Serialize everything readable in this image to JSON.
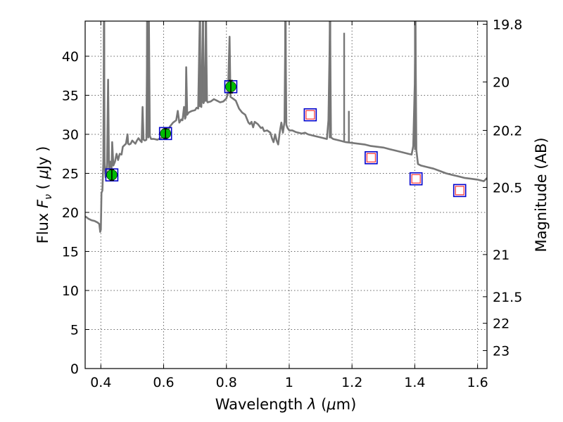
{
  "chart_data": {
    "type": "scatter",
    "xlabel_prefix": "Wavelength  ",
    "xlabel_symbol": "λ",
    "xlabel_unit_open": " (",
    "xlabel_unit_mu": "μ",
    "xlabel_unit_rest": "m)",
    "ylabel_prefix": "Flux  ",
    "ylabel_symbol": "F",
    "ylabel_sub": "ν",
    "ylabel_unit_open": "  ( ",
    "ylabel_unit_mu": "μ",
    "ylabel_unit_rest": "Jy )",
    "y2label": "Magnitude (AB)",
    "xlim": [
      0.35,
      1.63
    ],
    "ylim": [
      0,
      44.5
    ],
    "grid": true,
    "x_ticks": [
      {
        "value": 0.4,
        "label": "0.4"
      },
      {
        "value": 0.6,
        "label": "0.6"
      },
      {
        "value": 0.8,
        "label": "0.8"
      },
      {
        "value": 1.0,
        "label": "1"
      },
      {
        "value": 1.2,
        "label": "1.2"
      },
      {
        "value": 1.4,
        "label": "1.4"
      },
      {
        "value": 1.6,
        "label": "1.6"
      }
    ],
    "y_ticks": [
      {
        "value": 0,
        "label": "0"
      },
      {
        "value": 5,
        "label": "5"
      },
      {
        "value": 10,
        "label": "10"
      },
      {
        "value": 15,
        "label": "15"
      },
      {
        "value": 20,
        "label": "20"
      },
      {
        "value": 25,
        "label": "25"
      },
      {
        "value": 30,
        "label": "30"
      },
      {
        "value": 35,
        "label": "35"
      },
      {
        "value": 40,
        "label": "40"
      }
    ],
    "y2_ticks": [
      {
        "flux": 44.1,
        "label": "19.8"
      },
      {
        "flux": 36.7,
        "label": "20"
      },
      {
        "flux": 30.5,
        "label": "20.2"
      },
      {
        "flux": 23.2,
        "label": "20.5"
      },
      {
        "flux": 14.6,
        "label": "21"
      },
      {
        "flux": 9.2,
        "label": "21.5"
      },
      {
        "flux": 5.8,
        "label": "22"
      },
      {
        "flux": 2.3,
        "label": "23"
      }
    ],
    "sed_color": "#777777",
    "sed_curve": [
      [
        0.35,
        19.5
      ],
      [
        0.36,
        19.2
      ],
      [
        0.37,
        19.0
      ],
      [
        0.38,
        18.9
      ],
      [
        0.39,
        18.7
      ],
      [
        0.395,
        18.5
      ],
      [
        0.398,
        17.5
      ],
      [
        0.4,
        17.8
      ],
      [
        0.402,
        22.5
      ],
      [
        0.405,
        22.8
      ],
      [
        0.408,
        26.5
      ],
      [
        0.41,
        44.5
      ],
      [
        0.412,
        26
      ],
      [
        0.415,
        24.5
      ],
      [
        0.418,
        25
      ],
      [
        0.42,
        26.5
      ],
      [
        0.423,
        37
      ],
      [
        0.426,
        25.5
      ],
      [
        0.43,
        26.5
      ],
      [
        0.434,
        25.5
      ],
      [
        0.436,
        29
      ],
      [
        0.44,
        26
      ],
      [
        0.445,
        26.5
      ],
      [
        0.45,
        27.5
      ],
      [
        0.455,
        26.7
      ],
      [
        0.46,
        27.5
      ],
      [
        0.466,
        27.4
      ],
      [
        0.47,
        28.4
      ],
      [
        0.48,
        28.8
      ],
      [
        0.485,
        30.0
      ],
      [
        0.487,
        28.8
      ],
      [
        0.49,
        28.7
      ],
      [
        0.495,
        28.8
      ],
      [
        0.5,
        29.2
      ],
      [
        0.505,
        29.0
      ],
      [
        0.51,
        28.8
      ],
      [
        0.515,
        29.2
      ],
      [
        0.52,
        29.5
      ],
      [
        0.525,
        29.2
      ],
      [
        0.53,
        29.0
      ],
      [
        0.533,
        33.5
      ],
      [
        0.536,
        29.3
      ],
      [
        0.54,
        29.2
      ],
      [
        0.545,
        29.3
      ],
      [
        0.548,
        44.5
      ],
      [
        0.551,
        29.6
      ],
      [
        0.553,
        44.5
      ],
      [
        0.556,
        29.8
      ],
      [
        0.56,
        29.4
      ],
      [
        0.57,
        29.4
      ],
      [
        0.58,
        29.3
      ],
      [
        0.59,
        29.5
      ],
      [
        0.6,
        29.6
      ],
      [
        0.61,
        30.2
      ],
      [
        0.62,
        31.0
      ],
      [
        0.63,
        31.5
      ],
      [
        0.64,
        31.8
      ],
      [
        0.645,
        33.0
      ],
      [
        0.65,
        31.5
      ],
      [
        0.656,
        31.9
      ],
      [
        0.66,
        31.8
      ],
      [
        0.665,
        33.5
      ],
      [
        0.668,
        32.0
      ],
      [
        0.67,
        32.2
      ],
      [
        0.672,
        38.6
      ],
      [
        0.675,
        32.5
      ],
      [
        0.68,
        32.8
      ],
      [
        0.69,
        33.0
      ],
      [
        0.7,
        33.1
      ],
      [
        0.705,
        33.4
      ],
      [
        0.71,
        33.3
      ],
      [
        0.715,
        44.5
      ],
      [
        0.718,
        33.6
      ],
      [
        0.72,
        33.5
      ],
      [
        0.725,
        44.5
      ],
      [
        0.727,
        34.0
      ],
      [
        0.73,
        34.3
      ],
      [
        0.735,
        44.5
      ],
      [
        0.738,
        34.3
      ],
      [
        0.74,
        34.1
      ],
      [
        0.75,
        34.2
      ],
      [
        0.76,
        34.5
      ],
      [
        0.77,
        34.3
      ],
      [
        0.78,
        34.1
      ],
      [
        0.79,
        34.2
      ],
      [
        0.8,
        34.6
      ],
      [
        0.805,
        35.3
      ],
      [
        0.81,
        42.5
      ],
      [
        0.813,
        34.8
      ],
      [
        0.82,
        34.6
      ],
      [
        0.83,
        34.3
      ],
      [
        0.84,
        33.3
      ],
      [
        0.85,
        32.8
      ],
      [
        0.86,
        32.5
      ],
      [
        0.87,
        31.5
      ],
      [
        0.875,
        31.3
      ],
      [
        0.88,
        31.6
      ],
      [
        0.885,
        30.9
      ],
      [
        0.89,
        31.6
      ],
      [
        0.9,
        31.3
      ],
      [
        0.91,
        30.8
      ],
      [
        0.915,
        30.9
      ],
      [
        0.92,
        30.4
      ],
      [
        0.93,
        30.5
      ],
      [
        0.94,
        30.2
      ],
      [
        0.945,
        29.5
      ],
      [
        0.95,
        29.0
      ],
      [
        0.955,
        30.0
      ],
      [
        0.96,
        29.2
      ],
      [
        0.965,
        28.7
      ],
      [
        0.97,
        30.3
      ],
      [
        0.975,
        31.5
      ],
      [
        0.98,
        30.2
      ],
      [
        0.985,
        31.6
      ],
      [
        0.988,
        44.5
      ],
      [
        0.991,
        31.2
      ],
      [
        0.995,
        30.8
      ],
      [
        1.0,
        30.5
      ],
      [
        1.01,
        30.5
      ],
      [
        1.02,
        30.3
      ],
      [
        1.03,
        30.2
      ],
      [
        1.04,
        30.1
      ],
      [
        1.05,
        30.2
      ],
      [
        1.06,
        30.0
      ],
      [
        1.08,
        29.8
      ],
      [
        1.1,
        29.6
      ],
      [
        1.12,
        29.4
      ],
      [
        1.125,
        31.8
      ],
      [
        1.13,
        44.5
      ],
      [
        1.133,
        29.6
      ],
      [
        1.14,
        29.4
      ],
      [
        1.16,
        29.2
      ],
      [
        1.18,
        29.0
      ],
      [
        1.2,
        28.9
      ],
      [
        1.22,
        28.8
      ],
      [
        1.24,
        28.7
      ],
      [
        1.26,
        28.5
      ],
      [
        1.28,
        28.4
      ],
      [
        1.3,
        28.3
      ],
      [
        1.32,
        28.1
      ],
      [
        1.34,
        27.9
      ],
      [
        1.36,
        27.7
      ],
      [
        1.38,
        27.5
      ],
      [
        1.39,
        27.4
      ],
      [
        1.395,
        28.5
      ],
      [
        1.4,
        36.5
      ],
      [
        1.402,
        44.5
      ],
      [
        1.405,
        28.0
      ],
      [
        1.41,
        26.2
      ],
      [
        1.42,
        26.0
      ],
      [
        1.44,
        25.8
      ],
      [
        1.46,
        25.6
      ],
      [
        1.48,
        25.3
      ],
      [
        1.5,
        25.0
      ],
      [
        1.52,
        24.8
      ],
      [
        1.54,
        24.6
      ],
      [
        1.56,
        24.4
      ],
      [
        1.58,
        24.3
      ],
      [
        1.6,
        24.2
      ],
      [
        1.62,
        24.0
      ],
      [
        1.63,
        24.4
      ]
    ],
    "sed_spikes": [
      [
        0.4095,
        28.5,
        44.5
      ],
      [
        0.411,
        28.0,
        44.5
      ],
      [
        0.547,
        30.0,
        44.5
      ],
      [
        0.5485,
        30.0,
        44.5
      ],
      [
        0.552,
        30.0,
        44.5
      ],
      [
        0.7155,
        33.5,
        44.5
      ],
      [
        0.7165,
        33.5,
        44.5
      ],
      [
        0.726,
        34.0,
        44.5
      ],
      [
        0.734,
        34.2,
        44.5
      ],
      [
        0.7355,
        34.2,
        44.5
      ],
      [
        0.987,
        31.6,
        44.5
      ],
      [
        0.989,
        31.6,
        44.5
      ],
      [
        1.129,
        29.5,
        44.5
      ],
      [
        1.131,
        29.5,
        44.5
      ],
      [
        1.175,
        29.0,
        43.0
      ],
      [
        1.19,
        29.0,
        33.0
      ],
      [
        1.4005,
        28.0,
        44.5
      ],
      [
        1.4025,
        28.0,
        44.5
      ]
    ],
    "series": [
      {
        "marker": "circle-in-square",
        "fill": "#00bb00",
        "edge": "#0000cc",
        "points": [
          {
            "x": 0.435,
            "y": 24.8,
            "err": 0.7
          },
          {
            "x": 0.606,
            "y": 30.1,
            "err": 0.6
          },
          {
            "x": 0.814,
            "y": 36.1,
            "err": 0.8
          }
        ]
      },
      {
        "marker": "square-in-square",
        "fill": "#ffffff",
        "inner_edge": "#ff3333",
        "edge": "#0000cc",
        "points": [
          {
            "x": 1.067,
            "y": 32.5
          },
          {
            "x": 1.261,
            "y": 27.0
          },
          {
            "x": 1.404,
            "y": 24.3
          },
          {
            "x": 1.543,
            "y": 22.8
          }
        ]
      }
    ]
  }
}
